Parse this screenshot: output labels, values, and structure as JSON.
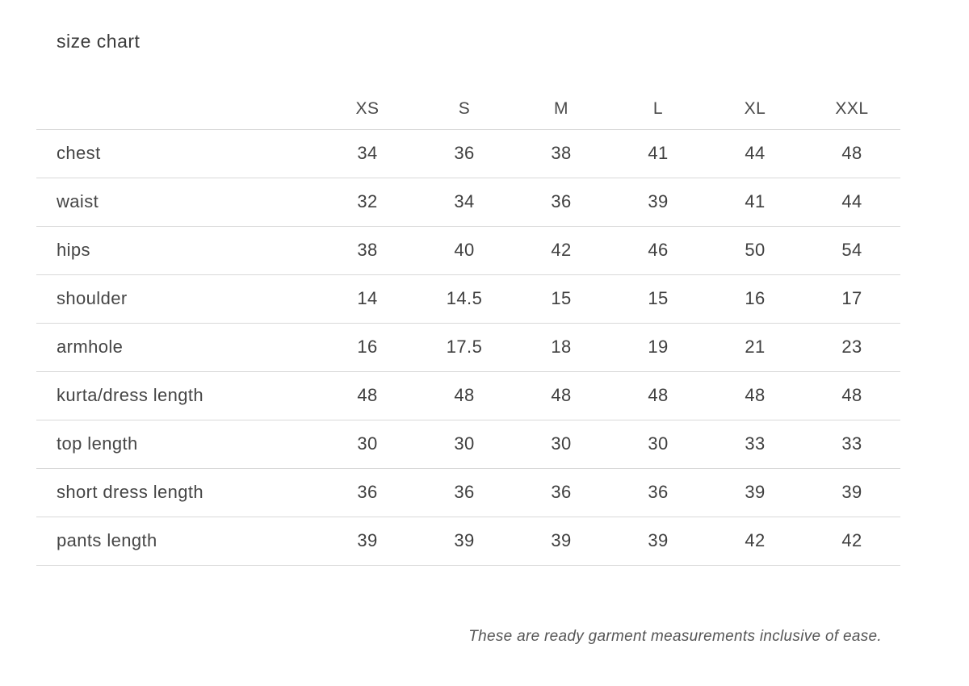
{
  "page": {
    "title": "size chart",
    "footnote": "These are ready garment measurements inclusive of ease."
  },
  "chart_data": {
    "type": "table",
    "title": "size chart",
    "columns": [
      "XS",
      "S",
      "M",
      "L",
      "XL",
      "XXL"
    ],
    "rows": [
      {
        "label": "chest",
        "values": [
          34,
          36,
          38,
          41,
          44,
          48
        ]
      },
      {
        "label": "waist",
        "values": [
          32,
          34,
          36,
          39,
          41,
          44
        ]
      },
      {
        "label": "hips",
        "values": [
          38,
          40,
          42,
          46,
          50,
          54
        ]
      },
      {
        "label": "shoulder",
        "values": [
          14,
          14.5,
          15,
          15,
          16,
          17
        ]
      },
      {
        "label": "armhole",
        "values": [
          16,
          17.5,
          18,
          19,
          21,
          23
        ]
      },
      {
        "label": "kurta/dress length",
        "values": [
          48,
          48,
          48,
          48,
          48,
          48
        ]
      },
      {
        "label": "top length",
        "values": [
          30,
          30,
          30,
          30,
          33,
          33
        ]
      },
      {
        "label": "short dress length",
        "values": [
          36,
          36,
          36,
          36,
          39,
          39
        ]
      },
      {
        "label": "pants length",
        "values": [
          39,
          39,
          39,
          39,
          42,
          42
        ]
      }
    ],
    "note": "These are ready garment measurements inclusive of ease.",
    "layout": {
      "grid": "horizontal-row-dividers",
      "divider_color": "#d9d9d9",
      "text_color": "#3f3f3f",
      "background": "#ffffff"
    }
  }
}
